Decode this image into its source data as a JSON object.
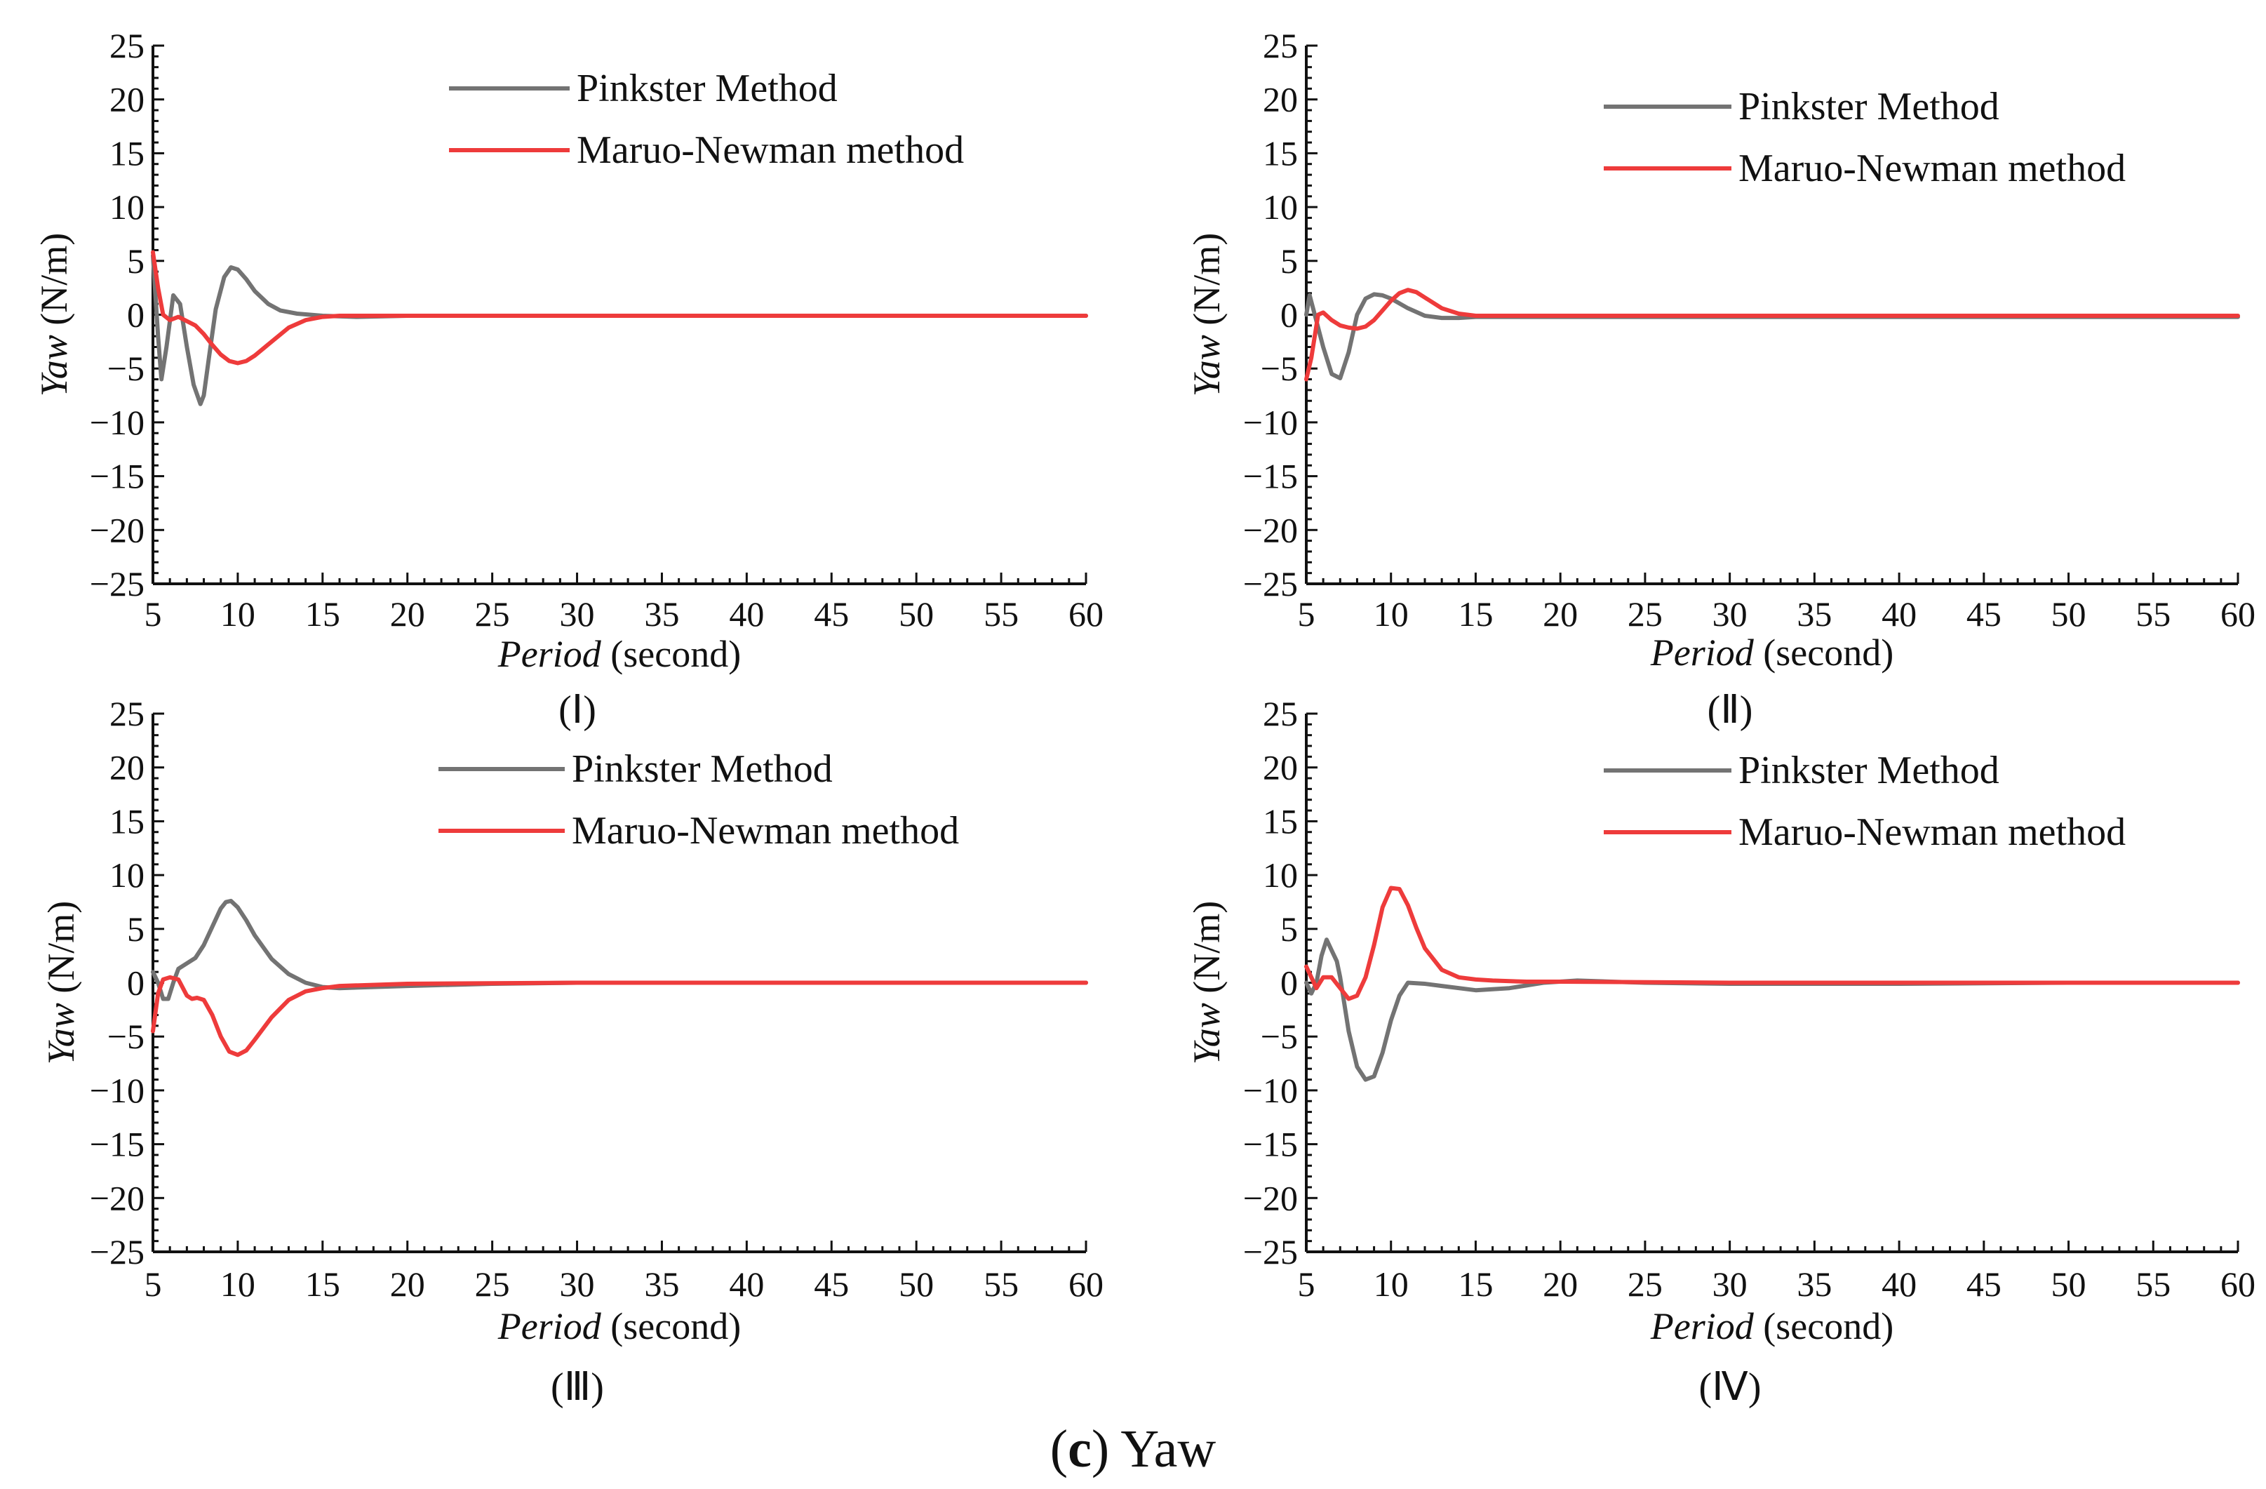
{
  "figure_caption": {
    "letter": "c",
    "text": "Yaw"
  },
  "colors": {
    "pinkster": "#737373",
    "maruo": "#ee3b3b",
    "axis": "#111111"
  },
  "chart_data": [
    {
      "type": "line",
      "panel": "(Ⅰ)",
      "xlabel_italic": "Period",
      "xlabel_rest": " (second)",
      "ylabel_italic": "Yaw",
      "ylabel_rest": " (N/m)",
      "xlim": [
        5,
        60
      ],
      "ylim": [
        -25,
        25
      ],
      "xticks": [
        5,
        10,
        15,
        20,
        25,
        30,
        35,
        40,
        45,
        50,
        55,
        60
      ],
      "yticks": [
        25,
        20,
        15,
        10,
        5,
        0,
        -5,
        -10,
        -15,
        -20,
        -25
      ],
      "legend_position": "top-right",
      "series": [
        {
          "name": "Pinkster Method",
          "x": [
            5,
            5.3,
            5.5,
            5.8,
            6.2,
            6.6,
            7.0,
            7.4,
            7.8,
            8.0,
            8.3,
            8.7,
            9.2,
            9.6,
            10.0,
            10.5,
            11.0,
            11.8,
            12.5,
            13.5,
            15,
            17,
            20,
            30,
            40,
            50,
            60
          ],
          "y": [
            5.5,
            -2,
            -6,
            -3,
            1.8,
            1.0,
            -3,
            -6.5,
            -8.3,
            -7.5,
            -4,
            0.5,
            3.5,
            4.4,
            4.2,
            3.3,
            2.2,
            1.0,
            0.4,
            0.1,
            -0.1,
            -0.2,
            -0.1,
            -0.1,
            -0.1,
            -0.1,
            -0.1
          ]
        },
        {
          "name": "Maruo-Newman method",
          "x": [
            5,
            5.3,
            5.6,
            6.0,
            6.5,
            7.0,
            7.5,
            8.0,
            8.5,
            9.0,
            9.5,
            10.0,
            10.5,
            11.0,
            12.0,
            13.0,
            14.0,
            15.0,
            16.0,
            20,
            30,
            40,
            50,
            60
          ],
          "y": [
            5.8,
            2.5,
            0,
            -0.5,
            -0.2,
            -0.6,
            -1.0,
            -1.8,
            -2.8,
            -3.7,
            -4.3,
            -4.5,
            -4.3,
            -3.8,
            -2.5,
            -1.2,
            -0.5,
            -0.2,
            -0.1,
            -0.1,
            -0.1,
            -0.1,
            -0.1,
            -0.1
          ]
        }
      ]
    },
    {
      "type": "line",
      "panel": "(Ⅱ)",
      "xlabel_italic": "Period",
      "xlabel_rest": " (second)",
      "ylabel_italic": "Yaw",
      "ylabel_rest": " (N/m)",
      "xlim": [
        5,
        60
      ],
      "ylim": [
        -25,
        25
      ],
      "xticks": [
        5,
        10,
        15,
        20,
        25,
        30,
        35,
        40,
        45,
        50,
        55,
        60
      ],
      "yticks": [
        25,
        20,
        15,
        10,
        5,
        0,
        -5,
        -10,
        -15,
        -20,
        -25
      ],
      "legend_position": "top-right",
      "series": [
        {
          "name": "Pinkster Method",
          "x": [
            5,
            5.2,
            5.5,
            6.0,
            6.5,
            7.0,
            7.5,
            8.0,
            8.5,
            9.0,
            9.5,
            10.0,
            11.0,
            12.0,
            13.0,
            14.0,
            15.0,
            16.0,
            20,
            30,
            40,
            50,
            60
          ],
          "y": [
            0,
            1.8,
            0,
            -3,
            -5.5,
            -5.9,
            -3.5,
            0,
            1.5,
            1.9,
            1.8,
            1.5,
            0.6,
            -0.1,
            -0.3,
            -0.3,
            -0.2,
            -0.2,
            -0.2,
            -0.2,
            -0.2,
            -0.2,
            -0.2
          ]
        },
        {
          "name": "Maruo-Newman method",
          "x": [
            5,
            5.3,
            5.7,
            6.0,
            6.5,
            7.0,
            7.5,
            8.0,
            8.5,
            9.0,
            9.5,
            10.0,
            10.5,
            11.0,
            11.5,
            12.0,
            13.0,
            14.0,
            15.0,
            20,
            30,
            40,
            50,
            60
          ],
          "y": [
            -6,
            -4,
            0,
            0.2,
            -0.5,
            -1.0,
            -1.2,
            -1.3,
            -1.1,
            -0.5,
            0.4,
            1.3,
            2.0,
            2.3,
            2.1,
            1.6,
            0.6,
            0.1,
            -0.1,
            -0.1,
            -0.1,
            -0.1,
            -0.1,
            -0.1
          ]
        }
      ]
    },
    {
      "type": "line",
      "panel": "(Ⅲ)",
      "xlabel_italic": "Period",
      "xlabel_rest": " (second)",
      "ylabel_italic": "Yaw",
      "ylabel_rest": " (N/m)",
      "xlim": [
        5,
        60
      ],
      "ylim": [
        -25,
        25
      ],
      "xticks": [
        5,
        10,
        15,
        20,
        25,
        30,
        35,
        40,
        45,
        50,
        55,
        60
      ],
      "yticks": [
        25,
        20,
        15,
        10,
        5,
        0,
        -5,
        -10,
        -15,
        -20,
        -25
      ],
      "legend_position": "top-right",
      "series": [
        {
          "name": "Pinkster Method",
          "x": [
            5,
            5.3,
            5.6,
            5.9,
            6.2,
            6.5,
            7.0,
            7.5,
            8.0,
            8.5,
            9.0,
            9.3,
            9.6,
            10.0,
            10.5,
            11.0,
            12.0,
            13.0,
            14.0,
            15.0,
            16.0,
            18,
            20,
            25,
            30,
            40,
            50,
            60
          ],
          "y": [
            1,
            0,
            -1.5,
            -1.5,
            0,
            1.3,
            1.8,
            2.3,
            3.5,
            5.2,
            6.9,
            7.5,
            7.6,
            7.0,
            5.8,
            4.4,
            2.2,
            0.8,
            0,
            -0.4,
            -0.5,
            -0.4,
            -0.3,
            -0.1,
            0,
            0,
            0,
            0
          ]
        },
        {
          "name": "Maruo-Newman method",
          "x": [
            5,
            5.3,
            5.6,
            6.0,
            6.5,
            7.0,
            7.3,
            7.6,
            8.0,
            8.5,
            9.0,
            9.5,
            10.0,
            10.5,
            11.0,
            12.0,
            13.0,
            14.0,
            15.0,
            16.0,
            20,
            30,
            40,
            50,
            60
          ],
          "y": [
            -4.5,
            -1,
            0.3,
            0.5,
            0.3,
            -1.2,
            -1.5,
            -1.4,
            -1.6,
            -3.0,
            -5.0,
            -6.4,
            -6.7,
            -6.3,
            -5.3,
            -3.2,
            -1.6,
            -0.8,
            -0.5,
            -0.3,
            -0.1,
            0,
            0,
            0,
            0
          ]
        }
      ]
    },
    {
      "type": "line",
      "panel": "(Ⅳ)",
      "xlabel_italic": "Period",
      "xlabel_rest": " (second)",
      "ylabel_italic": "Yaw",
      "ylabel_rest": " (N/m)",
      "xlim": [
        5,
        60
      ],
      "ylim": [
        -25,
        25
      ],
      "xticks": [
        5,
        10,
        15,
        20,
        25,
        30,
        35,
        40,
        45,
        50,
        55,
        60
      ],
      "yticks": [
        25,
        20,
        15,
        10,
        5,
        0,
        -5,
        -10,
        -15,
        -20,
        -25
      ],
      "legend_position": "top-right",
      "series": [
        {
          "name": "Pinkster Method",
          "x": [
            5,
            5.3,
            5.6,
            5.9,
            6.2,
            6.5,
            6.8,
            7.0,
            7.5,
            8.0,
            8.5,
            9.0,
            9.5,
            10.0,
            10.5,
            11.0,
            12.0,
            13.0,
            15.0,
            17.0,
            19.0,
            21.0,
            23.0,
            25.0,
            30,
            40,
            50,
            60
          ],
          "y": [
            0,
            -1,
            0,
            2.5,
            4.0,
            3.0,
            2.0,
            0.5,
            -4.5,
            -7.8,
            -9.0,
            -8.7,
            -6.5,
            -3.5,
            -1.2,
            0,
            -0.1,
            -0.3,
            -0.7,
            -0.5,
            0,
            0.2,
            0.1,
            0,
            -0.1,
            -0.1,
            0,
            0
          ]
        },
        {
          "name": "Maruo-Newman method",
          "x": [
            5,
            5.3,
            5.6,
            6.0,
            6.5,
            7.0,
            7.5,
            8.0,
            8.5,
            9.0,
            9.5,
            10.0,
            10.5,
            11.0,
            11.5,
            12.0,
            13.0,
            14.0,
            15.0,
            16.0,
            18.0,
            20.0,
            30,
            40,
            50,
            60
          ],
          "y": [
            1.5,
            0.5,
            -0.5,
            0.5,
            0.5,
            -0.5,
            -1.5,
            -1.2,
            0.5,
            3.5,
            7.0,
            8.8,
            8.7,
            7.2,
            5.1,
            3.2,
            1.2,
            0.5,
            0.3,
            0.2,
            0.1,
            0.1,
            0,
            0,
            0,
            0
          ]
        }
      ]
    }
  ]
}
